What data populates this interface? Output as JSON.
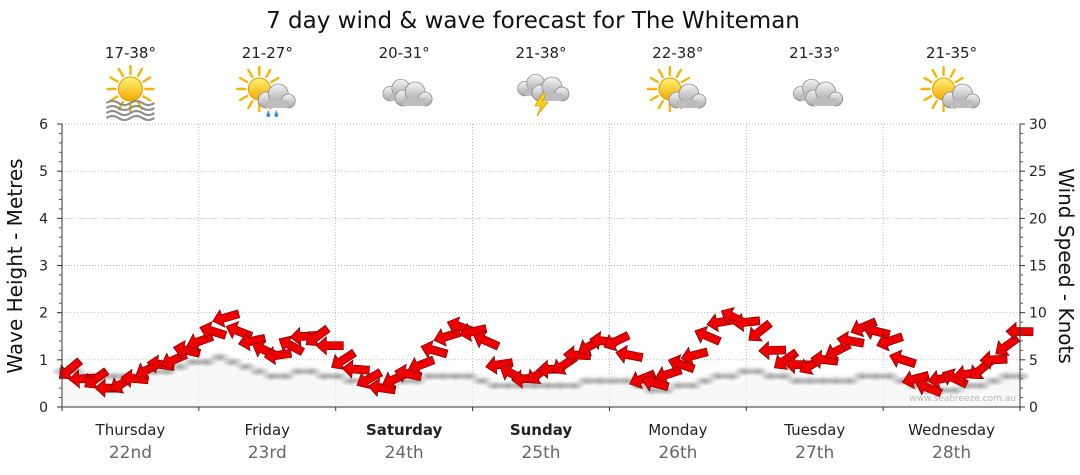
{
  "chart_data": {
    "type": "line",
    "title": "7 day wind & wave forecast for The Whiteman",
    "y_left": {
      "label": "Wave Height - Metres",
      "lim": [
        0,
        6
      ],
      "ticks": [
        0,
        1,
        2,
        3,
        4,
        5,
        6
      ]
    },
    "y_right": {
      "label": "Wind Speed - Knots",
      "lim": [
        0,
        30
      ],
      "ticks": [
        0,
        5,
        10,
        15,
        20,
        25,
        30
      ]
    },
    "grid": true,
    "watermark": "www.seabreeze.com.au",
    "days": [
      {
        "day": "Thursday",
        "date": "22nd",
        "temp": "17-38°",
        "icon": "sun-haze-icon",
        "bold": false
      },
      {
        "day": "Friday",
        "date": "23rd",
        "temp": "21-27°",
        "icon": "sun-cloud-rain-icon",
        "bold": false
      },
      {
        "day": "Saturday",
        "date": "24th",
        "temp": "20-31°",
        "icon": "cloudy-icon",
        "bold": true
      },
      {
        "day": "Sunday",
        "date": "25th",
        "temp": "21-38°",
        "icon": "storm-icon",
        "bold": true
      },
      {
        "day": "Monday",
        "date": "26th",
        "temp": "22-38°",
        "icon": "sun-cloud-icon",
        "bold": false
      },
      {
        "day": "Tuesday",
        "date": "27th",
        "temp": "21-33°",
        "icon": "cloudy-icon",
        "bold": false
      },
      {
        "day": "Wednesday",
        "date": "28th",
        "temp": "21-35°",
        "icon": "sun-cloud-icon",
        "bold": false
      }
    ],
    "wind_knots": [
      4,
      3,
      3,
      2,
      2.5,
      3,
      4,
      4.5,
      5,
      6,
      7,
      8,
      9.5,
      8,
      7,
      6,
      5.5,
      6.5,
      7.5,
      7.5,
      6.5,
      5,
      4,
      3,
      2,
      3,
      3.5,
      4.5,
      6,
      7.5,
      8.5,
      8,
      7,
      4.5,
      3.5,
      3,
      3.5,
      4,
      4.5,
      5.5,
      6.5,
      7,
      7,
      5.5,
      3,
      2.5,
      3.5,
      4.5,
      5.5,
      7.5,
      9,
      9.5,
      9,
      8,
      6,
      5,
      4.5,
      4.5,
      5,
      6,
      7,
      8.5,
      8,
      7,
      5,
      3,
      2,
      3,
      3,
      3.5,
      4,
      5,
      6.5,
      8
    ],
    "wave_m": [
      0.9,
      0.9,
      0.8,
      0.8,
      0.8,
      0.8,
      0.8,
      0.9,
      0.9,
      1.0,
      1.1,
      1.1,
      1.2,
      1.1,
      1.0,
      0.9,
      0.8,
      0.8,
      0.9,
      0.9,
      0.8,
      0.8,
      0.7,
      0.7,
      0.6,
      0.6,
      0.7,
      0.7,
      0.8,
      0.8,
      0.8,
      0.8,
      0.7,
      0.6,
      0.6,
      0.6,
      0.6,
      0.6,
      0.6,
      0.6,
      0.7,
      0.7,
      0.7,
      0.7,
      0.6,
      0.5,
      0.5,
      0.6,
      0.6,
      0.7,
      0.8,
      0.8,
      0.9,
      0.9,
      0.8,
      0.8,
      0.7,
      0.7,
      0.7,
      0.7,
      0.7,
      0.8,
      0.8,
      0.8,
      0.7,
      0.6,
      0.5,
      0.5,
      0.5,
      0.6,
      0.6,
      0.7,
      0.8,
      0.8
    ]
  }
}
